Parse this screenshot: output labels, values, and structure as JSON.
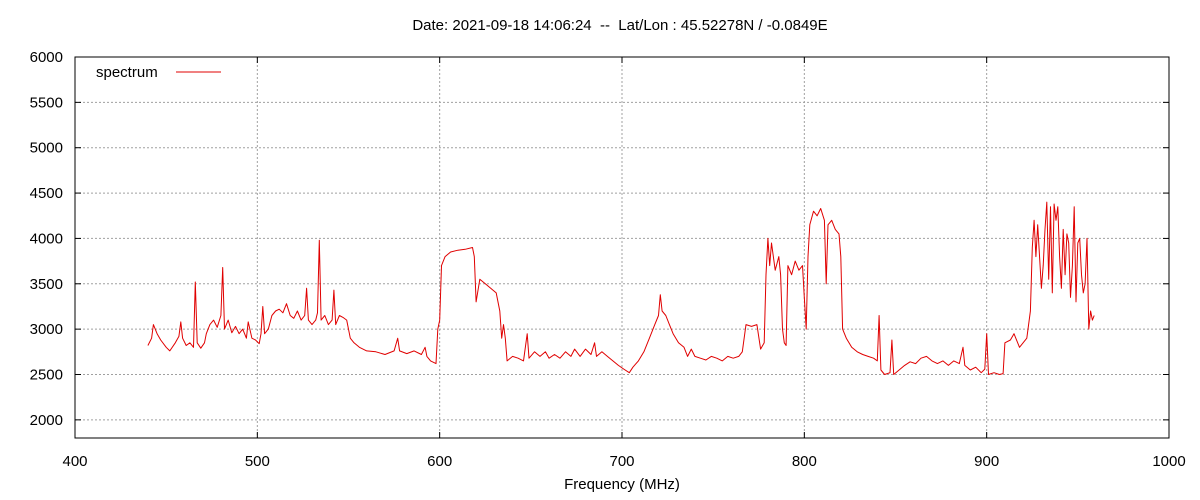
{
  "chart_data": {
    "type": "line",
    "title": "Date: 2021-09-18 14:06:24  --  Lat/Lon : 45.52278N / -0.0849E",
    "xlabel": "Frequency (MHz)",
    "ylabel": "",
    "xlim": [
      400,
      1000
    ],
    "ylim": [
      1800,
      6000
    ],
    "x_ticks": [
      400,
      500,
      600,
      700,
      800,
      900,
      1000
    ],
    "y_ticks": [
      2000,
      2500,
      3000,
      3500,
      4000,
      4500,
      5000,
      5500,
      6000
    ],
    "grid": true,
    "legend_position": "top-left",
    "series": [
      {
        "name": "spectrum",
        "color": "#e00000",
        "points": [
          [
            440,
            2820
          ],
          [
            442,
            2900
          ],
          [
            443,
            3050
          ],
          [
            445,
            2950
          ],
          [
            447,
            2880
          ],
          [
            450,
            2800
          ],
          [
            452,
            2760
          ],
          [
            455,
            2850
          ],
          [
            457,
            2920
          ],
          [
            458,
            3080
          ],
          [
            459,
            2900
          ],
          [
            461,
            2820
          ],
          [
            463,
            2850
          ],
          [
            465,
            2800
          ],
          [
            466,
            3520
          ],
          [
            467,
            2850
          ],
          [
            469,
            2790
          ],
          [
            471,
            2850
          ],
          [
            472,
            2950
          ],
          [
            474,
            3050
          ],
          [
            476,
            3100
          ],
          [
            478,
            3020
          ],
          [
            480,
            3150
          ],
          [
            481,
            3680
          ],
          [
            482,
            3000
          ],
          [
            484,
            3100
          ],
          [
            486,
            2960
          ],
          [
            488,
            3030
          ],
          [
            490,
            2950
          ],
          [
            492,
            3000
          ],
          [
            494,
            2900
          ],
          [
            495,
            3080
          ],
          [
            497,
            2900
          ],
          [
            499,
            2880
          ],
          [
            501,
            2840
          ],
          [
            502,
            2950
          ],
          [
            503,
            3250
          ],
          [
            504,
            2950
          ],
          [
            506,
            3000
          ],
          [
            508,
            3150
          ],
          [
            510,
            3200
          ],
          [
            512,
            3220
          ],
          [
            514,
            3180
          ],
          [
            516,
            3280
          ],
          [
            518,
            3150
          ],
          [
            520,
            3120
          ],
          [
            522,
            3200
          ],
          [
            524,
            3100
          ],
          [
            526,
            3150
          ],
          [
            527,
            3450
          ],
          [
            528,
            3100
          ],
          [
            530,
            3050
          ],
          [
            532,
            3100
          ],
          [
            533,
            3180
          ],
          [
            534,
            3980
          ],
          [
            535,
            3100
          ],
          [
            537,
            3150
          ],
          [
            539,
            3050
          ],
          [
            541,
            3100
          ],
          [
            542,
            3430
          ],
          [
            543,
            3050
          ],
          [
            545,
            3150
          ],
          [
            547,
            3130
          ],
          [
            549,
            3100
          ],
          [
            551,
            2900
          ],
          [
            553,
            2850
          ],
          [
            556,
            2800
          ],
          [
            560,
            2760
          ],
          [
            565,
            2750
          ],
          [
            570,
            2720
          ],
          [
            575,
            2760
          ],
          [
            577,
            2900
          ],
          [
            578,
            2760
          ],
          [
            582,
            2730
          ],
          [
            586,
            2760
          ],
          [
            590,
            2720
          ],
          [
            592,
            2800
          ],
          [
            593,
            2700
          ],
          [
            595,
            2650
          ],
          [
            598,
            2620
          ],
          [
            599,
            3000
          ],
          [
            600,
            3100
          ],
          [
            601,
            3700
          ],
          [
            603,
            3800
          ],
          [
            606,
            3850
          ],
          [
            610,
            3870
          ],
          [
            614,
            3880
          ],
          [
            618,
            3900
          ],
          [
            619,
            3800
          ],
          [
            620,
            3300
          ],
          [
            622,
            3550
          ],
          [
            625,
            3500
          ],
          [
            628,
            3450
          ],
          [
            631,
            3400
          ],
          [
            633,
            3200
          ],
          [
            634,
            2900
          ],
          [
            635,
            3050
          ],
          [
            636,
            2900
          ],
          [
            637,
            2650
          ],
          [
            640,
            2700
          ],
          [
            643,
            2680
          ],
          [
            646,
            2650
          ],
          [
            648,
            2950
          ],
          [
            649,
            2680
          ],
          [
            652,
            2750
          ],
          [
            655,
            2700
          ],
          [
            658,
            2750
          ],
          [
            660,
            2680
          ],
          [
            663,
            2720
          ],
          [
            666,
            2680
          ],
          [
            669,
            2750
          ],
          [
            672,
            2700
          ],
          [
            674,
            2780
          ],
          [
            677,
            2700
          ],
          [
            680,
            2780
          ],
          [
            683,
            2720
          ],
          [
            685,
            2850
          ],
          [
            686,
            2700
          ],
          [
            689,
            2750
          ],
          [
            692,
            2700
          ],
          [
            695,
            2650
          ],
          [
            698,
            2600
          ],
          [
            701,
            2560
          ],
          [
            704,
            2520
          ],
          [
            706,
            2580
          ],
          [
            709,
            2650
          ],
          [
            712,
            2750
          ],
          [
            715,
            2900
          ],
          [
            718,
            3050
          ],
          [
            720,
            3150
          ],
          [
            721,
            3380
          ],
          [
            722,
            3200
          ],
          [
            724,
            3150
          ],
          [
            726,
            3050
          ],
          [
            728,
            2950
          ],
          [
            731,
            2850
          ],
          [
            734,
            2800
          ],
          [
            736,
            2700
          ],
          [
            738,
            2780
          ],
          [
            740,
            2700
          ],
          [
            743,
            2680
          ],
          [
            746,
            2660
          ],
          [
            749,
            2700
          ],
          [
            752,
            2680
          ],
          [
            755,
            2650
          ],
          [
            758,
            2700
          ],
          [
            761,
            2680
          ],
          [
            764,
            2700
          ],
          [
            766,
            2750
          ],
          [
            768,
            3050
          ],
          [
            771,
            3030
          ],
          [
            774,
            3050
          ],
          [
            776,
            2780
          ],
          [
            778,
            2850
          ],
          [
            779,
            3600
          ],
          [
            780,
            4000
          ],
          [
            781,
            3700
          ],
          [
            782,
            3950
          ],
          [
            784,
            3650
          ],
          [
            786,
            3800
          ],
          [
            787,
            3600
          ],
          [
            788,
            3000
          ],
          [
            789,
            2850
          ],
          [
            790,
            2820
          ],
          [
            791,
            3700
          ],
          [
            793,
            3600
          ],
          [
            795,
            3750
          ],
          [
            797,
            3650
          ],
          [
            799,
            3700
          ],
          [
            800,
            3350
          ],
          [
            801,
            3000
          ],
          [
            802,
            3800
          ],
          [
            803,
            4150
          ],
          [
            805,
            4300
          ],
          [
            807,
            4250
          ],
          [
            809,
            4330
          ],
          [
            811,
            4200
          ],
          [
            812,
            3500
          ],
          [
            813,
            4150
          ],
          [
            815,
            4200
          ],
          [
            817,
            4100
          ],
          [
            819,
            4050
          ],
          [
            820,
            3800
          ],
          [
            821,
            3000
          ],
          [
            823,
            2900
          ],
          [
            826,
            2800
          ],
          [
            829,
            2750
          ],
          [
            832,
            2720
          ],
          [
            835,
            2700
          ],
          [
            838,
            2680
          ],
          [
            840,
            2650
          ],
          [
            841,
            3150
          ],
          [
            842,
            2550
          ],
          [
            844,
            2500
          ],
          [
            847,
            2520
          ],
          [
            848,
            2880
          ],
          [
            849,
            2500
          ],
          [
            852,
            2550
          ],
          [
            855,
            2600
          ],
          [
            858,
            2640
          ],
          [
            861,
            2620
          ],
          [
            864,
            2680
          ],
          [
            867,
            2700
          ],
          [
            870,
            2650
          ],
          [
            873,
            2620
          ],
          [
            876,
            2650
          ],
          [
            879,
            2600
          ],
          [
            882,
            2650
          ],
          [
            885,
            2620
          ],
          [
            887,
            2800
          ],
          [
            888,
            2600
          ],
          [
            891,
            2550
          ],
          [
            894,
            2580
          ],
          [
            897,
            2520
          ],
          [
            899,
            2560
          ],
          [
            900,
            2950
          ],
          [
            901,
            2500
          ],
          [
            904,
            2520
          ],
          [
            907,
            2500
          ],
          [
            909,
            2510
          ],
          [
            910,
            2850
          ],
          [
            913,
            2880
          ],
          [
            915,
            2950
          ],
          [
            916,
            2900
          ],
          [
            918,
            2800
          ],
          [
            920,
            2850
          ],
          [
            922,
            2900
          ],
          [
            924,
            3200
          ],
          [
            925,
            3900
          ],
          [
            926,
            4200
          ],
          [
            927,
            3800
          ],
          [
            928,
            4150
          ],
          [
            930,
            3450
          ],
          [
            931,
            3700
          ],
          [
            932,
            4100
          ],
          [
            933,
            4400
          ],
          [
            934,
            3550
          ],
          [
            935,
            4350
          ],
          [
            936,
            3400
          ],
          [
            937,
            4380
          ],
          [
            938,
            4200
          ],
          [
            939,
            4350
          ],
          [
            940,
            3800
          ],
          [
            941,
            3450
          ],
          [
            942,
            4100
          ],
          [
            943,
            3600
          ],
          [
            944,
            4050
          ],
          [
            945,
            3950
          ],
          [
            946,
            3350
          ],
          [
            947,
            3700
          ],
          [
            948,
            4350
          ],
          [
            949,
            3300
          ],
          [
            950,
            3950
          ],
          [
            951,
            4000
          ],
          [
            952,
            3600
          ],
          [
            953,
            3400
          ],
          [
            954,
            3500
          ],
          [
            955,
            4000
          ],
          [
            956,
            3000
          ],
          [
            957,
            3200
          ],
          [
            958,
            3100
          ],
          [
            959,
            3150
          ]
        ]
      }
    ]
  }
}
